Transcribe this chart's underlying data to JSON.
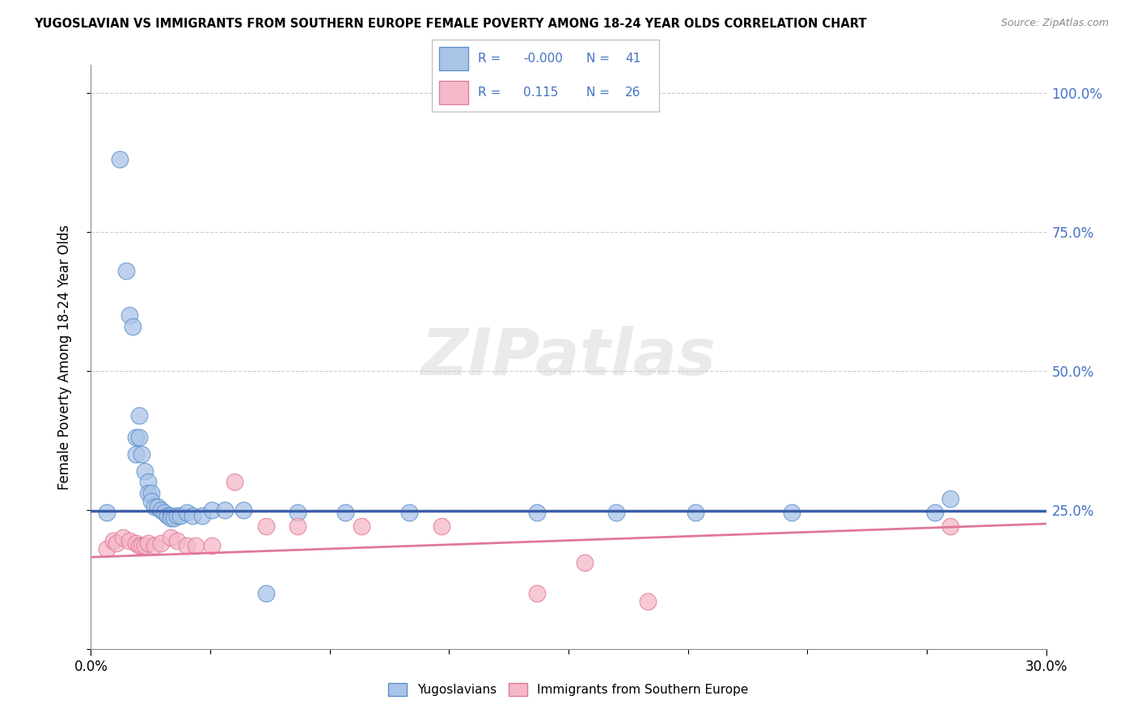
{
  "title": "YUGOSLAVIAN VS IMMIGRANTS FROM SOUTHERN EUROPE FEMALE POVERTY AMONG 18-24 YEAR OLDS CORRELATION CHART",
  "source": "Source: ZipAtlas.com",
  "ylabel": "Female Poverty Among 18-24 Year Olds",
  "xlim": [
    0.0,
    0.3
  ],
  "ylim": [
    0.0,
    1.05
  ],
  "ytick_vals": [
    0.0,
    0.25,
    0.5,
    0.75,
    1.0
  ],
  "ytick_labels_right": [
    "",
    "25.0%",
    "50.0%",
    "75.0%",
    "100.0%"
  ],
  "xtick_vals": [
    0.0,
    0.3
  ],
  "xtick_labels": [
    "0.0%",
    "30.0%"
  ],
  "r1": -0.0,
  "n1": 41,
  "r2": 0.115,
  "n2": 26,
  "color1": "#aac4e8",
  "color2": "#f5b8c8",
  "edge_color1": "#5b8fc9",
  "edge_color2": "#e07898",
  "line_color1": "#3a5faa",
  "line_color2": "#e07898",
  "watermark": "ZIPatlas",
  "legend_labels": [
    "Yugoslavians",
    "Immigrants from Southern Europe"
  ],
  "blue_x": [
    0.005,
    0.009,
    0.011,
    0.012,
    0.013,
    0.014,
    0.014,
    0.015,
    0.015,
    0.016,
    0.017,
    0.018,
    0.018,
    0.019,
    0.019,
    0.02,
    0.021,
    0.022,
    0.023,
    0.024,
    0.025,
    0.025,
    0.026,
    0.027,
    0.028,
    0.03,
    0.032,
    0.035,
    0.038,
    0.042,
    0.048,
    0.055,
    0.065,
    0.08,
    0.1,
    0.14,
    0.165,
    0.19,
    0.22,
    0.265,
    0.27
  ],
  "blue_y": [
    0.245,
    0.88,
    0.68,
    0.6,
    0.58,
    0.38,
    0.35,
    0.42,
    0.38,
    0.35,
    0.32,
    0.3,
    0.28,
    0.28,
    0.265,
    0.255,
    0.255,
    0.25,
    0.245,
    0.24,
    0.24,
    0.235,
    0.235,
    0.24,
    0.24,
    0.245,
    0.24,
    0.24,
    0.25,
    0.25,
    0.25,
    0.1,
    0.245,
    0.245,
    0.245,
    0.245,
    0.245,
    0.245,
    0.245,
    0.245,
    0.27
  ],
  "pink_x": [
    0.005,
    0.007,
    0.008,
    0.01,
    0.012,
    0.014,
    0.015,
    0.016,
    0.017,
    0.018,
    0.02,
    0.022,
    0.025,
    0.027,
    0.03,
    0.033,
    0.038,
    0.045,
    0.055,
    0.065,
    0.085,
    0.11,
    0.14,
    0.155,
    0.175,
    0.27
  ],
  "pink_y": [
    0.18,
    0.195,
    0.19,
    0.2,
    0.195,
    0.19,
    0.185,
    0.185,
    0.185,
    0.19,
    0.185,
    0.19,
    0.2,
    0.195,
    0.185,
    0.185,
    0.185,
    0.3,
    0.22,
    0.22,
    0.22,
    0.22,
    0.1,
    0.155,
    0.085,
    0.22
  ],
  "blue_hline_y": 0.248,
  "pink_line_x0": 0.0,
  "pink_line_y0": 0.165,
  "pink_line_x1": 0.3,
  "pink_line_y1": 0.225,
  "grid_color": "#cccccc",
  "grid_linestyle": "--",
  "minor_xtick_count": 8
}
